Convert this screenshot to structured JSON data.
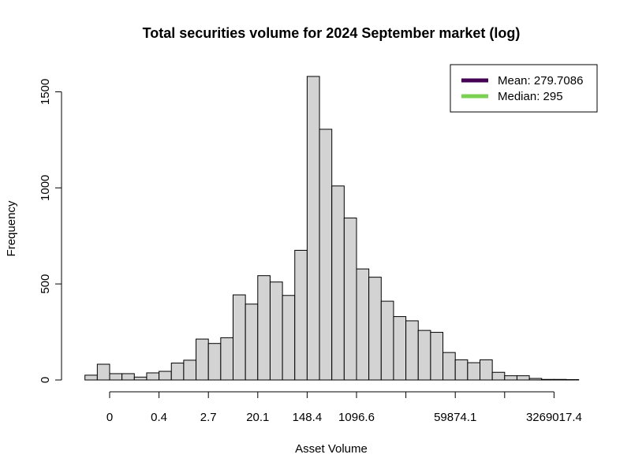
{
  "chart_data": {
    "type": "bar",
    "title": "Total securities volume for 2024 September market (log)",
    "xlabel": "Asset Volume",
    "ylabel": "Frequency",
    "ylim": [
      0,
      1600
    ],
    "y_ticks": [
      0,
      500,
      1000,
      1500
    ],
    "x_ticks": [
      {
        "value": -2,
        "label": "0"
      },
      {
        "value": 0,
        "label": "0.4"
      },
      {
        "value": 2,
        "label": "2.7"
      },
      {
        "value": 4,
        "label": "20.1"
      },
      {
        "value": 6,
        "label": "148.4"
      },
      {
        "value": 8,
        "label": "1096.6"
      },
      {
        "value": 10,
        "label": ""
      },
      {
        "value": 12,
        "label": "59874.1"
      },
      {
        "value": 14,
        "label": ""
      },
      {
        "value": 16,
        "label": "3269017.4"
      }
    ],
    "bin_start": -3,
    "bin_width": 0.5,
    "values": [
      25,
      82,
      33,
      33,
      15,
      37,
      45,
      88,
      103,
      213,
      190,
      220,
      443,
      395,
      543,
      510,
      440,
      675,
      1580,
      1305,
      1010,
      843,
      578,
      535,
      410,
      330,
      308,
      258,
      248,
      143,
      105,
      90,
      105,
      40,
      22,
      22,
      8,
      3,
      3,
      2
    ],
    "bar_color": "#d3d3d3",
    "legend": {
      "placement": "top-right",
      "entries": [
        {
          "label": "Mean: 279.7086",
          "color": "#440154"
        },
        {
          "label": "Median: 295",
          "color": "#7ad151"
        }
      ]
    }
  }
}
